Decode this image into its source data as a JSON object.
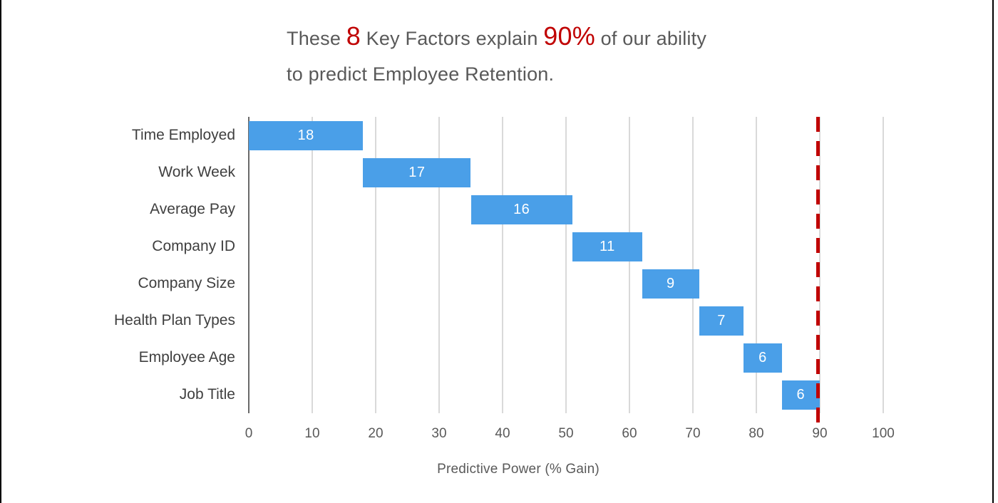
{
  "title": {
    "part1": "These ",
    "num1": "8",
    "part2": " Key Factors explain ",
    "num2": "90%",
    "part3": " of our ability",
    "line2": "to predict Employee Retention."
  },
  "chart_data": {
    "type": "bar",
    "variant": "horizontal-waterfall",
    "categories": [
      "Time Employed",
      "Work Week",
      "Average Pay",
      "Company ID",
      "Company Size",
      "Health Plan Types",
      "Employee Age",
      "Job Title"
    ],
    "values": [
      18,
      17,
      16,
      11,
      9,
      7,
      6,
      6
    ],
    "starts": [
      0,
      18,
      35,
      51,
      62,
      71,
      78,
      84
    ],
    "cumulative_total": 90,
    "xlabel": "Predictive Power (% Gain)",
    "x_ticks": [
      0,
      10,
      20,
      30,
      40,
      50,
      60,
      70,
      80,
      90,
      100
    ],
    "xlim": [
      0,
      100
    ],
    "grid": true,
    "value_label_position": "inside-center-white",
    "reference_line": {
      "value": 90,
      "style": "dashed",
      "color": "#c00000"
    },
    "bar_color": "#4a9fe8"
  },
  "colors": {
    "title_text": "#595959",
    "title_accent": "#c00000",
    "bar": "#4a9fe8",
    "bar_value_text": "#ffffff",
    "category_text": "#3f3f3f",
    "tick_text": "#595959",
    "gridline": "#d9d9d9",
    "axis_line": "#6a6a6a",
    "reference_line": "#c00000",
    "frame_edges": "#000000"
  }
}
